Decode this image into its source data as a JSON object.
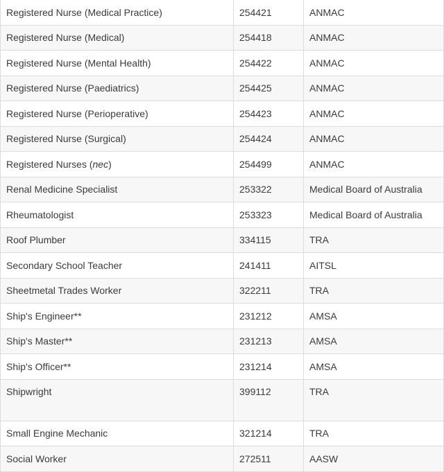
{
  "table": {
    "rows": [
      {
        "occupation": "Registered Nurse (Medical Practice)",
        "code": "254421",
        "authority": "ANMAC"
      },
      {
        "occupation": "Registered Nurse (Medical)",
        "code": "254418",
        "authority": "ANMAC"
      },
      {
        "occupation": "Registered Nurse (Mental Health)",
        "code": "254422",
        "authority": "ANMAC"
      },
      {
        "occupation": "Registered Nurse (Paediatrics)",
        "code": "254425",
        "authority": "ANMAC"
      },
      {
        "occupation": "Registered Nurse (Perioperative)",
        "code": "254423",
        "authority": "ANMAC"
      },
      {
        "occupation": "Registered Nurse (Surgical)",
        "code": "254424",
        "authority": "ANMAC"
      },
      {
        "occupation": "Registered Nurses (",
        "occupation_italic": "nec",
        "occupation_suffix": ")",
        "code": "254499",
        "authority": "ANMAC"
      },
      {
        "occupation": "Renal Medicine Specialist",
        "code": "253322",
        "authority": "Medical Board of Australia"
      },
      {
        "occupation": "Rheumatologist",
        "code": "253323",
        "authority": "Medical Board of Australia"
      },
      {
        "occupation": "Roof Plumber",
        "code": "334115",
        "authority": "TRA"
      },
      {
        "occupation": "Secondary School Teacher",
        "code": "241411",
        "authority": "AITSL"
      },
      {
        "occupation": "Sheetmetal Trades Worker",
        "code": "322211",
        "authority": "TRA"
      },
      {
        "occupation": "Ship's Engineer**",
        "code": "231212",
        "authority": "AMSA"
      },
      {
        "occupation": "Ship's Master**",
        "code": "231213",
        "authority": "AMSA"
      },
      {
        "occupation": "Ship's Officer**",
        "code": "231214",
        "authority": "AMSA"
      },
      {
        "occupation": "Shipwright",
        "code": "399112",
        "authority": "TRA"
      },
      {
        "occupation": "Small Engine Mechanic",
        "code": "321214",
        "authority": "TRA"
      },
      {
        "occupation": "Social Worker",
        "code": "272511",
        "authority": "AASW"
      }
    ]
  }
}
